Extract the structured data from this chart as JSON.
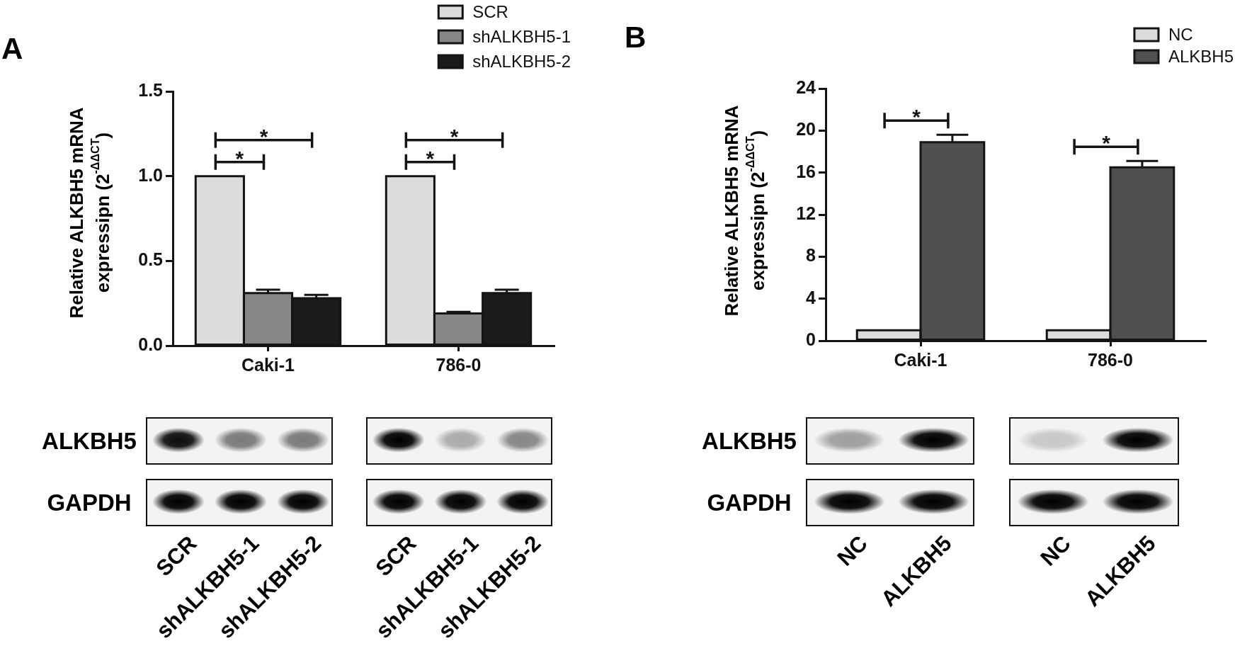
{
  "chart_data": [
    {
      "type": "bar",
      "title": "A",
      "ylabel": "Relative ALKBH5 mRNA expressipn (2$^{-ΔΔCT}$)",
      "categories": [
        "Caki-1",
        "786-0"
      ],
      "series": [
        {
          "name": "SCR",
          "color": "#dcdcde",
          "values": [
            1.0,
            1.0
          ]
        },
        {
          "name": "shALKBH5-1",
          "color": "#878787",
          "values": [
            0.31,
            0.19
          ],
          "errors": [
            0.02,
            0.01
          ]
        },
        {
          "name": "shALKBH5-2",
          "color": "#1b1b1b",
          "values": [
            0.28,
            0.31
          ],
          "errors": [
            0.02,
            0.02
          ]
        }
      ],
      "ylim": [
        0,
        1.5
      ],
      "yticks": [
        {
          "value": 0,
          "label": "0.0"
        },
        0.5,
        {
          "value": 1,
          "label": "1.0"
        },
        1.5
      ],
      "legend": "top right",
      "annotations": [
        "*",
        "*",
        "*",
        "*"
      ]
    },
    {
      "type": "bar",
      "title": "B",
      "ylabel": "Relative ALKBH5 mRNA expressipn (2$^{-ΔΔCT}$)",
      "categories": [
        "Caki-1",
        "786-0"
      ],
      "series": [
        {
          "name": "NC",
          "color": "#dcdcde",
          "values": [
            1,
            1
          ]
        },
        {
          "name": "ALKBH5",
          "color": "#4e504f",
          "values": [
            18.9,
            16.5
          ],
          "errors": [
            0.7,
            0.6
          ]
        }
      ],
      "ylim": [
        0,
        24
      ],
      "yticks": [
        0,
        4,
        8,
        12,
        16,
        20,
        24
      ],
      "legend": "top right",
      "annotations": [
        "*",
        "*"
      ]
    },
    {
      "type": "other",
      "y_categories": [
        "ALKBH5",
        "GAPDH"
      ],
      "categories": [
        "SCR",
        "shALKBH5-1",
        "shALKBH5-2",
        "SCR",
        "shALKBH5-1",
        "shALKBH5-2"
      ]
    },
    {
      "type": "other",
      "y_categories": [
        "ALKBH5",
        "GAPDH"
      ],
      "categories": [
        "NC",
        "ALKBH5",
        "NC",
        "ALKBH5"
      ]
    }
  ]
}
